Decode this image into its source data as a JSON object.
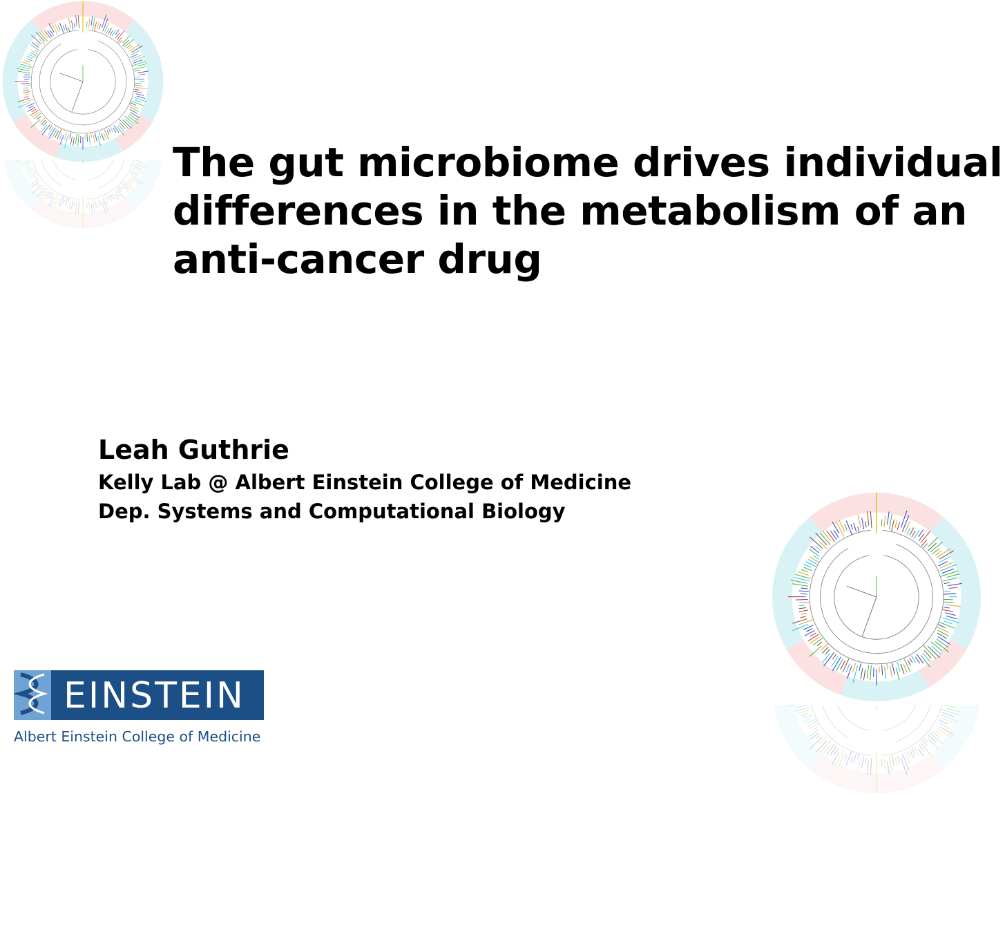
{
  "slide": {
    "title_lines": [
      "The gut microbiome drives individual",
      "differences in the metabolism of an",
      "anti-cancer drug"
    ],
    "presenter": "Leah Guthrie",
    "affiliations": [
      "Kelly Lab @ Albert Einstein College of Medicine",
      "Dep. Systems and Computational Biology"
    ]
  },
  "logo": {
    "wordmark": "EINSTEIN",
    "caption": "Albert Einstein College of Medicine",
    "colors": {
      "box": "#1d4f87",
      "strip": "#6fa3d4",
      "text": "#ffffff"
    }
  },
  "decor": {
    "graphic": "circular-phylogenetic-tree",
    "ring_colors": [
      "#d9f2f5",
      "#fbe1e1"
    ],
    "branch_colors": [
      "#2b3fd6",
      "#e0a020",
      "#3cb04a",
      "#c0392b",
      "#22c3e0",
      "#555555"
    ]
  }
}
